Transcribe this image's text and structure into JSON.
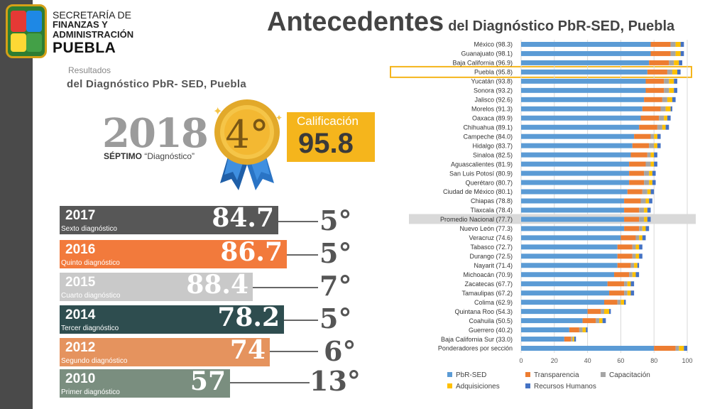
{
  "header": {
    "org_line1": "SECRETARÍA DE",
    "org_line2": "FINANZAS Y",
    "org_line3": "ADMINISTRACIÓN",
    "org_line4": "PUEBLA",
    "title_main": "Antecedentes",
    "title_sub": "del Diagnóstico PbR-SED, Puebla"
  },
  "results": {
    "label_small": "Resultados",
    "label_main": "del Diagnóstico PbR- SED, Puebla",
    "year": "2018",
    "ordinal_word": "SÉPTIMO",
    "ordinal_suffix": "“Diagnóstico”",
    "rank": "4°",
    "calificacion_label": "Calificación",
    "calificacion_value": "95.8"
  },
  "history": [
    {
      "year": "2017",
      "ordinal": "Sexto",
      "suffix": "diagnóstico",
      "score": "84.7",
      "rank": "5°",
      "color": "#575757",
      "fill": 1.0
    },
    {
      "year": "2016",
      "ordinal": "Quinto",
      "suffix": "diagnóstico",
      "score": "86.7",
      "rank": "5°",
      "color": "#f27a3c",
      "fill": 1.0
    },
    {
      "year": "2015",
      "ordinal": "Cuarto",
      "suffix": "diagnóstico",
      "score": "88.4",
      "rank": "7°",
      "color": "#c9c9c9",
      "fill": 1.0
    },
    {
      "year": "2014",
      "ordinal": "Tercer",
      "suffix": "diagnóstico",
      "score": "78.2",
      "rank": "5°",
      "color": "#2e4d4f",
      "fill": 1.0
    },
    {
      "year": "2012",
      "ordinal": "Segundo",
      "suffix": "diagnóstico",
      "score": "74",
      "rank": "6°",
      "color": "#e5935e",
      "fill": 1.0
    },
    {
      "year": "2010",
      "ordinal": "Primer",
      "suffix": "diagnóstico",
      "score": "57",
      "rank": "13°",
      "color": "#7a8e7f",
      "fill": 1.0
    }
  ],
  "chart_data": {
    "type": "bar",
    "orientation": "horizontal",
    "stacked": true,
    "categories": [
      "México (98.3)",
      "Guanajuato (98.1)",
      "Baja California (96.9)",
      "Puebla (95.8)",
      "Yucatán (93.8)",
      "Sonora (93.2)",
      "Jalisco (92.6)",
      "Morelos (91.3)",
      "Oaxaca (89.9)",
      "Chihuahua (89.1)",
      "Campeche (84.0)",
      "Hidalgo (83.7)",
      "Sinaloa (82.5)",
      "Aguascalientes (81.9)",
      "San Luis Potosí (80.9)",
      "Querétaro (80.7)",
      "Ciudad de México (80.1)",
      "Chiapas (78.8)",
      "Tlaxcala (78.4)",
      "Promedio Nacional (77.7)",
      "Nuevo León (77.3)",
      "Veracruz (74.6)",
      "Tabasco (72.7)",
      "Durango (72.5)",
      "Nayarit (71.4)",
      "Michoacán (70.9)",
      "Zacatecas (67.7)",
      "Tamaulipas (67.2)",
      "Colima (62.9)",
      "Quintana Roo (54.3)",
      "Coahuila (50.5)",
      "Guerrero (40.2)",
      "Baja California Sur (33.0)",
      "Ponderadores por sección"
    ],
    "series": [
      {
        "name": "PbR-SED",
        "color": "#5b9bd5",
        "values": [
          78,
          78,
          77,
          76,
          75,
          75,
          74,
          73,
          72,
          71,
          68,
          67,
          66,
          65,
          65,
          65,
          64,
          62,
          62,
          62,
          62,
          60,
          58,
          58,
          58,
          56,
          52,
          53,
          50,
          40,
          37,
          29,
          26,
          80
        ]
      },
      {
        "name": "Transparencia",
        "color": "#ed7d31",
        "values": [
          12,
          12,
          12,
          12,
          11,
          11,
          11,
          11,
          11,
          11,
          10,
          10,
          10,
          10,
          9,
          9,
          9,
          10,
          9,
          9,
          9,
          9,
          9,
          9,
          8,
          9,
          10,
          9,
          8,
          8,
          8,
          6,
          4,
          13
        ]
      },
      {
        "name": "Capacitación",
        "color": "#a5a5a5",
        "values": [
          3,
          3,
          3,
          3,
          3,
          3,
          3,
          3,
          3,
          3,
          2,
          3,
          2,
          3,
          3,
          3,
          3,
          3,
          3,
          3,
          2,
          2,
          2,
          2,
          2,
          2,
          2,
          2,
          2,
          2,
          2,
          2,
          1,
          2
        ]
      },
      {
        "name": "Adquisiciones",
        "color": "#ffc000",
        "values": [
          3,
          3,
          3,
          3,
          3,
          3,
          3,
          3,
          2,
          2,
          2,
          2,
          2,
          2,
          2,
          2,
          2,
          2,
          2,
          2,
          2,
          2,
          2,
          2,
          2,
          2,
          2,
          2,
          2,
          3,
          2,
          2,
          1,
          3
        ]
      },
      {
        "name": "Recursos Humanos",
        "color": "#4472c4",
        "values": [
          2,
          2,
          2,
          2,
          2,
          2,
          2,
          1,
          2,
          2,
          2,
          2,
          2,
          2,
          2,
          2,
          2,
          2,
          2,
          2,
          2,
          2,
          2,
          2,
          1,
          2,
          2,
          2,
          1,
          1,
          2,
          1,
          1,
          2
        ]
      }
    ],
    "xlim": [
      0,
      100
    ],
    "xticks": [
      "0",
      "20",
      "40",
      "60",
      "80",
      "100"
    ],
    "highlight_puebla": "Puebla (95.8)",
    "highlight_national": "Promedio Nacional (77.7)",
    "legend_position": "bottom",
    "grid": true
  }
}
